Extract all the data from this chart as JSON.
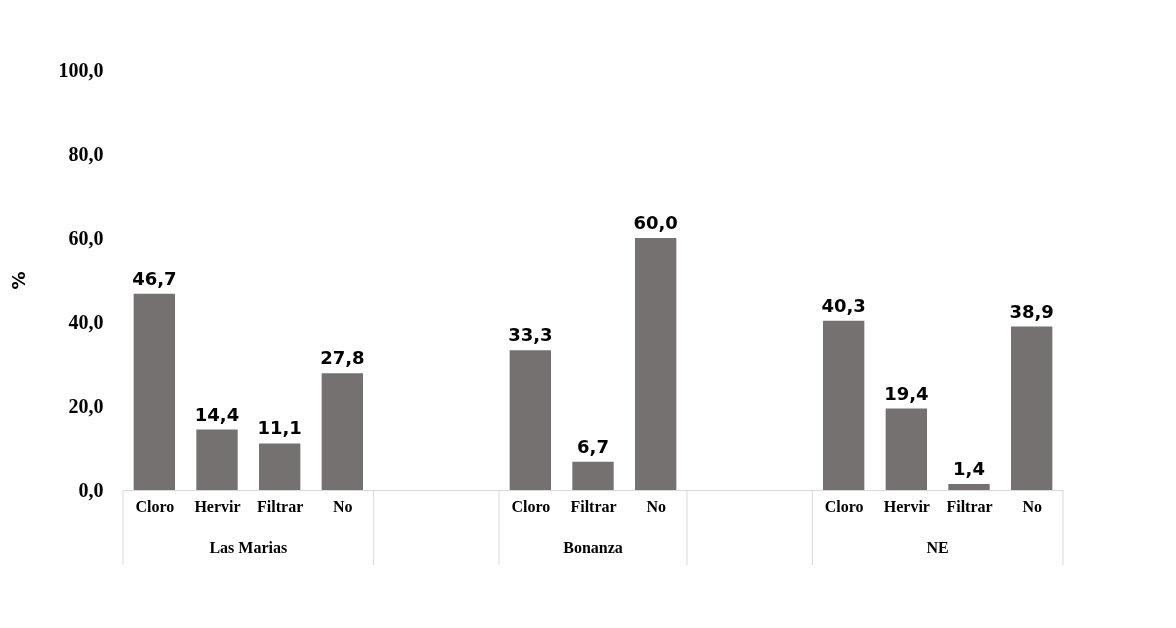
{
  "chart_data": {
    "type": "bar",
    "ylabel": "%",
    "categories": [
      "Cloro",
      "Hervir",
      "Filtrar",
      "No",
      null,
      null,
      "Cloro",
      "Filtrar",
      "No",
      null,
      null,
      "Cloro",
      "Hervir",
      "Filtrar",
      "No"
    ],
    "values": [
      46.7,
      14.4,
      11.1,
      27.8,
      null,
      null,
      33.3,
      6.7,
      60.0,
      null,
      null,
      40.3,
      19.4,
      1.4,
      38.9
    ],
    "value_labels": [
      "46,7",
      "14,4",
      "11,1",
      "27,8",
      null,
      null,
      "33,3",
      "6,7",
      "60,0",
      null,
      null,
      "40,3",
      "19,4",
      "1,4",
      "38,9"
    ],
    "color": "#767171",
    "ylim": [
      0,
      100
    ],
    "yticks": [
      {
        "value": 0,
        "label": "0,0"
      },
      {
        "value": 20,
        "label": "20,0"
      },
      {
        "value": 40,
        "label": "40,0"
      },
      {
        "value": 60,
        "label": "60,0"
      },
      {
        "value": 80,
        "label": "80,0"
      },
      {
        "value": 100,
        "label": "100,0"
      }
    ],
    "annotations": [
      "Las Marias",
      "Bonanza",
      "NE"
    ],
    "grid": false
  }
}
